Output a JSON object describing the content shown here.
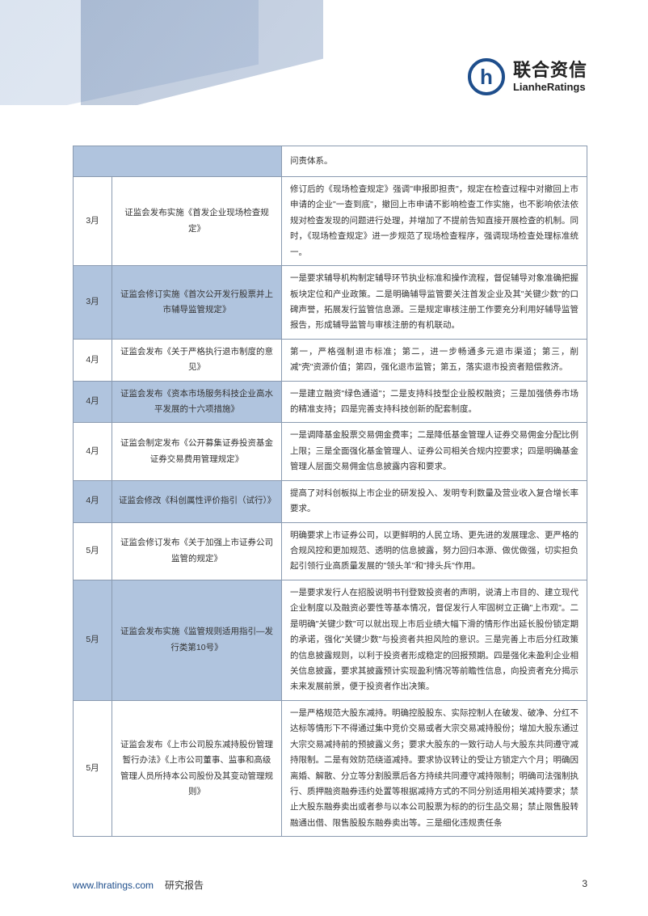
{
  "logo": {
    "letter": "h",
    "cn": "联合资信",
    "en": "LianheRatings"
  },
  "table": {
    "rows": [
      {
        "month": "",
        "title": "",
        "desc": "问责体系。",
        "tint": true,
        "blank_left": true
      },
      {
        "month": "3月",
        "title": "证监会发布实施《首发企业现场检查规定》",
        "desc": "修订后的《现场检查规定》强调\"申报即担责\"，规定在检查过程中对撤回上市申请的企业\"一查到底\"，撤回上市申请不影响检查工作实施，也不影响依法依规对检查发现的问题进行处理，并增加了不提前告知直接开展检查的机制。同时，《现场检查规定》进一步规范了现场检查程序，强调现场检查处理标准统一。",
        "tint": false
      },
      {
        "month": "3月",
        "title": "证监会修订实施《首次公开发行股票并上市辅导监管规定》",
        "desc": "一是要求辅导机构制定辅导环节执业标准和操作流程，督促辅导对象准确把握板块定位和产业政策。二是明确辅导监管要关注首发企业及其\"关键少数\"的口碑声誉，拓展发行监管信息源。三是规定审核注册工作要充分利用好辅导监管报告，形成辅导监管与审核注册的有机联动。",
        "tint": true
      },
      {
        "month": "4月",
        "title": "证监会发布《关于严格执行退市制度的意见》",
        "desc": "第一，严格强制退市标准；第二，进一步畅通多元退市渠道；第三，削减\"壳\"资源价值；第四，强化退市监管；第五，落实退市投资者赔偿救济。",
        "tint": false
      },
      {
        "month": "4月",
        "title": "证监会发布《资本市场服务科技企业高水平发展的十六项措施》",
        "desc": "一是建立融资\"绿色通道\"；二是支持科技型企业股权融资；三是加强债券市场的精准支持；四是完善支持科技创新的配套制度。",
        "tint": true
      },
      {
        "month": "4月",
        "title": "证监会制定发布《公开募集证券投资基金证券交易费用管理规定》",
        "desc": "一是调降基金股票交易佣金费率；二是降低基金管理人证券交易佣金分配比例上限；三是全面强化基金管理人、证券公司相关合规内控要求；四是明确基金管理人层面交易佣金信息披露内容和要求。",
        "tint": false
      },
      {
        "month": "4月",
        "title": "证监会修改《科创属性评价指引（试行）》",
        "desc": "提高了对科创板拟上市企业的研发投入、发明专利数量及营业收入复合增长率要求。",
        "tint": true
      },
      {
        "month": "5月",
        "title": "证监会修订发布《关于加强上市证券公司监管的规定》",
        "desc": "明确要求上市证券公司，以更鲜明的人民立场、更先进的发展理念、更严格的合规风控和更加规范、透明的信息披露，努力回归本源、做优做强，切实担负起引领行业高质量发展的\"领头羊\"和\"排头兵\"作用。",
        "tint": false
      },
      {
        "month": "5月",
        "title": "证监会发布实施《监管规则适用指引—发行类第10号》",
        "desc": "一是要求发行人在招股说明书刊登致投资者的声明，说清上市目的、建立现代企业制度以及融资必要性等基本情况，督促发行人牢固树立正确\"上市观\"。二是明确\"关键少数\"可以就出现上市后业绩大幅下滑的情形作出延长股份锁定期的承诺，强化\"关键少数\"与投资者共担风险的意识。三是完善上市后分红政策的信息披露规则，以利于投资者形成稳定的回报预期。四是强化未盈利企业相关信息披露，要求其披露预计实现盈利情况等前瞻性信息，向投资者充分揭示未来发展前景，便于投资者作出决策。",
        "tint": true
      },
      {
        "month": "5月",
        "title": "证监会发布《上市公司股东减持股份管理暂行办法》《上市公司董事、监事和高级管理人员所持本公司股份及其变动管理规则》",
        "desc": "一是严格规范大股东减持。明确控股股东、实际控制人在破发、破净、分红不达标等情形下不得通过集中竞价交易或者大宗交易减持股份；增加大股东通过大宗交易减持前的预披露义务；要求大股东的一致行动人与大股东共同遵守减持限制。二是有效防范绕道减持。要求协议转让的受让方锁定六个月；明确因离婚、解散、分立等分割股票后各方持续共同遵守减持限制；明确司法强制执行、质押融资融券违约处置等根据减持方式的不同分别适用相关减持要求；禁止大股东融券卖出或者参与以本公司股票为标的的衍生品交易；禁止限售股转融通出借、限售股股东融券卖出等。三是细化违规责任条",
        "tint": false
      }
    ]
  },
  "footer": {
    "url": "www.lhratings.com",
    "label": "研究报告",
    "page": "3"
  },
  "colors": {
    "tint_bg": "#b0c4de",
    "border": "#8a9ab0",
    "brand": "#1e4e8c",
    "text": "#333333"
  }
}
